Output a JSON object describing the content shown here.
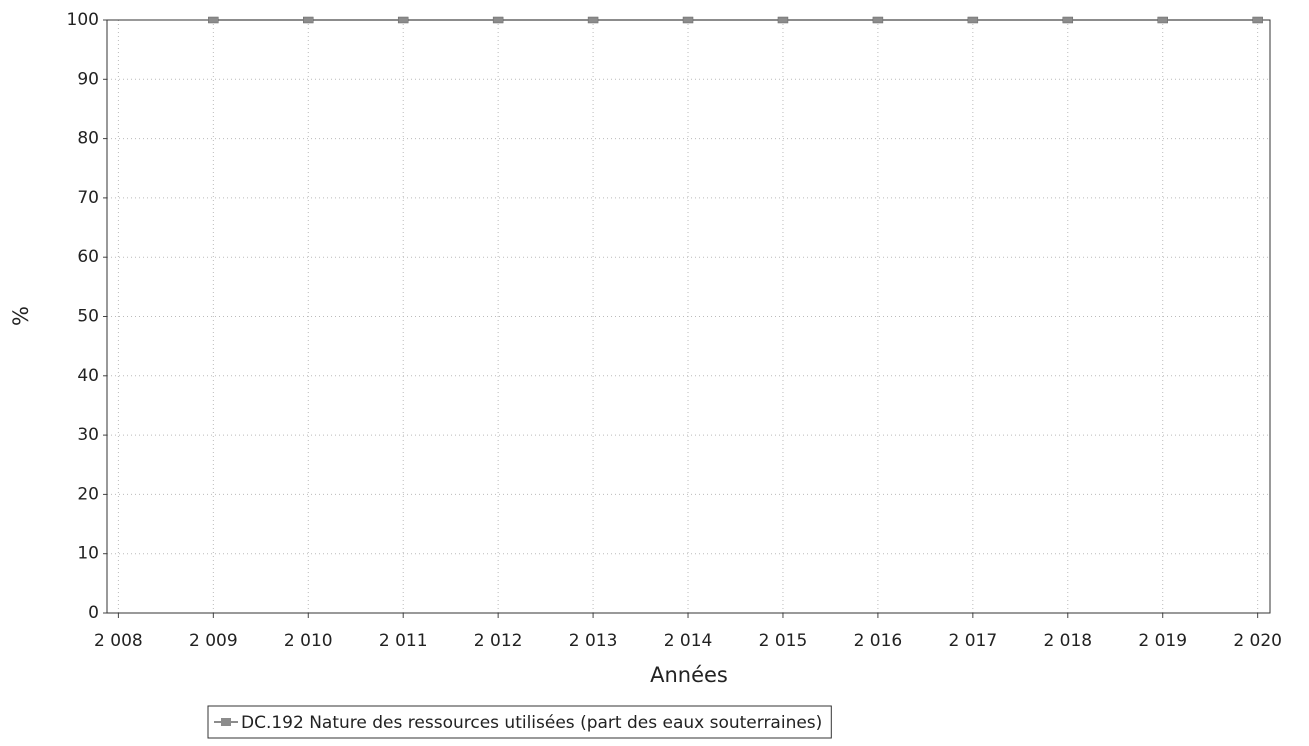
{
  "chart_data": {
    "type": "line",
    "x_label": "Années",
    "y_label": "%",
    "x": [
      2009,
      2010,
      2011,
      2012,
      2013,
      2014,
      2015,
      2016,
      2017,
      2018,
      2019,
      2020
    ],
    "series": [
      {
        "name": "DC.192 Nature des ressources utilisées (part des eaux souterraines)",
        "color": "#8c8c8c",
        "values": [
          100,
          100,
          100,
          100,
          100,
          100,
          100,
          100,
          100,
          100,
          100,
          100
        ]
      }
    ],
    "xlim": [
      2007.88,
      2020.13
    ],
    "xticks": [
      {
        "value": 2008,
        "label": "2 008"
      },
      {
        "value": 2009,
        "label": "2 009"
      },
      {
        "value": 2010,
        "label": "2 010"
      },
      {
        "value": 2011,
        "label": "2 011"
      },
      {
        "value": 2012,
        "label": "2 012"
      },
      {
        "value": 2013,
        "label": "2 013"
      },
      {
        "value": 2014,
        "label": "2 014"
      },
      {
        "value": 2015,
        "label": "2 015"
      },
      {
        "value": 2016,
        "label": "2 016"
      },
      {
        "value": 2017,
        "label": "2 017"
      },
      {
        "value": 2018,
        "label": "2 018"
      },
      {
        "value": 2019,
        "label": "2 019"
      },
      {
        "value": 2020,
        "label": "2 020"
      }
    ],
    "ylim": [
      0,
      100
    ],
    "yticks": [
      0,
      10,
      20,
      30,
      40,
      50,
      60,
      70,
      80,
      90,
      100
    ],
    "grid": true,
    "legend": "bottom"
  }
}
